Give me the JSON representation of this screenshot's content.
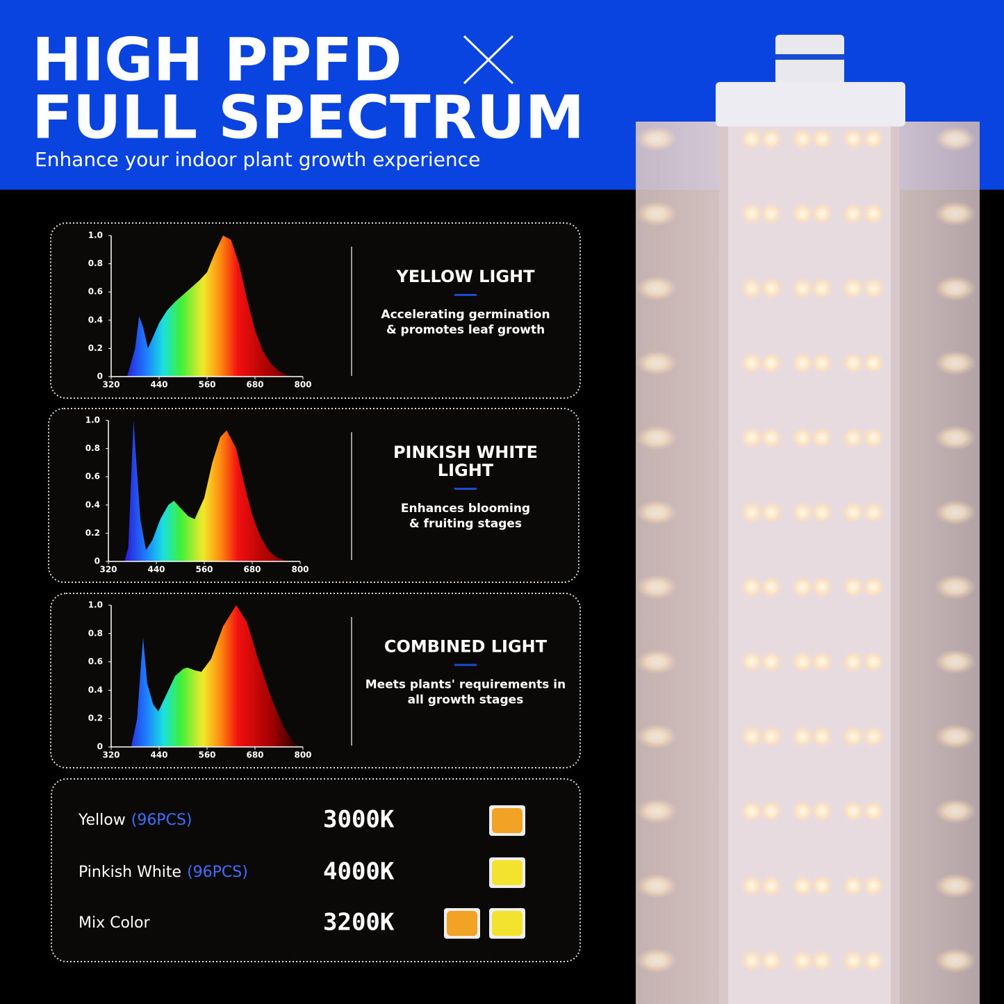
{
  "header": {
    "title_lines": [
      "HIGH PPFD",
      "FULL SPECTRUM"
    ],
    "subtitle": "Enhance your indoor plant growth experience"
  },
  "panels": [
    {
      "title_lines": [
        "YELLOW LIGHT"
      ],
      "text_lines": [
        "Accelerating germination",
        "& promotes leaf growth"
      ],
      "chart": {
        "type": "area",
        "xlim": [
          320,
          800
        ],
        "ylim": [
          0,
          1
        ],
        "xticks": [
          320,
          440,
          560,
          680,
          800
        ],
        "yticks": [
          0,
          0.2,
          0.4,
          0.6,
          0.8,
          {
            "value": 1,
            "label": "1.0"
          }
        ],
        "x": [
          360,
          380,
          390,
          400,
          412,
          420,
          440,
          460,
          480,
          500,
          520,
          540,
          560,
          580,
          600,
          620,
          640,
          660,
          680,
          700,
          720,
          740,
          760,
          780
        ],
        "values": [
          0,
          0.2,
          0.43,
          0.35,
          0.2,
          0.25,
          0.38,
          0.47,
          0.53,
          0.58,
          0.63,
          0.68,
          0.74,
          0.88,
          1.0,
          0.97,
          0.8,
          0.55,
          0.33,
          0.18,
          0.09,
          0.04,
          0.01,
          0
        ]
      }
    },
    {
      "title_lines": [
        "PINKISH WHITE",
        "LIGHT"
      ],
      "text_lines": [
        "Enhances blooming",
        "& fruiting stages"
      ],
      "chart": {
        "type": "area",
        "xlim": [
          320,
          800
        ],
        "ylim": [
          0,
          1
        ],
        "xticks": [
          320,
          440,
          560,
          680,
          800
        ],
        "yticks": [
          0,
          0.2,
          0.4,
          0.6,
          0.8,
          {
            "value": 1,
            "label": "1.0"
          }
        ],
        "x": [
          360,
          370,
          380,
          383,
          390,
          400,
          414,
          430,
          450,
          470,
          484,
          500,
          520,
          536,
          560,
          580,
          600,
          616,
          640,
          660,
          680,
          700,
          720,
          740,
          760,
          780
        ],
        "values": [
          0,
          0.1,
          0.8,
          1.0,
          0.7,
          0.3,
          0.08,
          0.15,
          0.3,
          0.4,
          0.43,
          0.38,
          0.32,
          0.3,
          0.45,
          0.7,
          0.88,
          0.93,
          0.8,
          0.55,
          0.33,
          0.18,
          0.08,
          0.03,
          0.01,
          0
        ]
      }
    },
    {
      "title_lines": [
        "COMBINED LIGHT"
      ],
      "text_lines": [
        "Meets plants' requirements in",
        "all growth stages"
      ],
      "chart": {
        "type": "area",
        "xlim": [
          320,
          800
        ],
        "ylim": [
          0,
          1
        ],
        "xticks": [
          320,
          440,
          560,
          680,
          800
        ],
        "yticks": [
          0,
          0.2,
          0.4,
          0.6,
          0.8,
          {
            "value": 1,
            "label": "1.0"
          }
        ],
        "x": [
          370,
          385,
          395,
          400,
          410,
          425,
          438,
          460,
          480,
          500,
          511,
          530,
          546,
          570,
          600,
          633,
          660,
          690,
          720,
          750,
          770,
          790
        ],
        "values": [
          0,
          0.2,
          0.6,
          0.77,
          0.45,
          0.3,
          0.25,
          0.38,
          0.5,
          0.55,
          0.56,
          0.54,
          0.53,
          0.62,
          0.85,
          1.0,
          0.88,
          0.6,
          0.35,
          0.15,
          0.06,
          0
        ]
      }
    }
  ],
  "specs": {
    "rows": [
      {
        "name": "Yellow",
        "count": "(96PCS)",
        "temp": "3000K",
        "chips": [
          "#f2a326"
        ]
      },
      {
        "name": "Pinkish White",
        "count": "(96PCS)",
        "temp": "4000K",
        "chips": [
          "#f3e32e"
        ]
      },
      {
        "name": "Mix Color",
        "temp": "3200K",
        "chips": [
          "#f2a326",
          "#f3e32e"
        ]
      }
    ]
  }
}
